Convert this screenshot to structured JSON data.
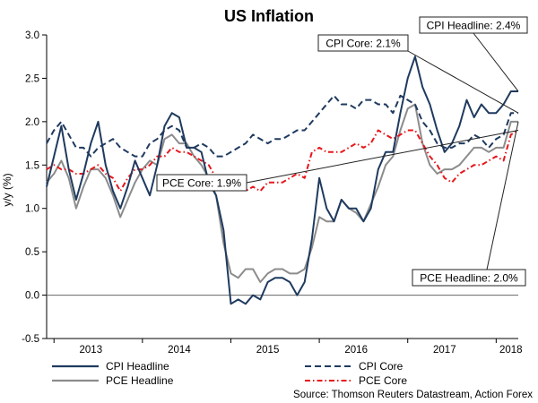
{
  "chart_data": {
    "type": "line",
    "title": "US Inflation",
    "ylabel": "y/y (%)",
    "xlabel": "",
    "ylim": [
      -0.5,
      3.0
    ],
    "yticks": [
      "3.0",
      "2.5",
      "2.0",
      "1.5",
      "1.0",
      "0.5",
      "0.0",
      "-0.5"
    ],
    "ytick_values": [
      3.0,
      2.5,
      2.0,
      1.5,
      1.0,
      0.5,
      0.0,
      -0.5
    ],
    "xlim_index": [
      0,
      64
    ],
    "x_start": "Dec 2012",
    "x_end": "Apr 2018",
    "xtick_labels": [
      "2013",
      "2014",
      "2015",
      "2016",
      "2017",
      "2018"
    ],
    "xtick_index": [
      6,
      18,
      30,
      42,
      54,
      63
    ],
    "year_boundary_index": [
      1,
      13,
      25,
      37,
      49,
      61
    ],
    "grid": false,
    "zero_line": true,
    "series": [
      {
        "name": "CPI Headline",
        "color": "#1f3a5f",
        "style": "solid",
        "values": [
          1.25,
          1.6,
          1.95,
          1.45,
          1.1,
          1.4,
          1.75,
          2.0,
          1.5,
          1.2,
          1.0,
          1.25,
          1.55,
          1.35,
          1.15,
          1.5,
          1.95,
          2.1,
          2.05,
          1.7,
          1.7,
          1.65,
          1.3,
          1.15,
          0.75,
          -0.1,
          -0.05,
          -0.1,
          0.0,
          -0.05,
          0.15,
          0.2,
          0.2,
          0.15,
          0.0,
          0.15,
          0.65,
          1.35,
          1.0,
          0.85,
          1.1,
          1.0,
          1.0,
          0.85,
          1.0,
          1.45,
          1.65,
          1.65,
          2.1,
          2.5,
          2.75,
          2.4,
          2.2,
          1.9,
          1.65,
          1.75,
          1.95,
          2.25,
          2.05,
          2.2,
          2.1,
          2.1,
          2.2,
          2.35,
          2.35
        ]
      },
      {
        "name": "CPI Core",
        "color": "#1f3a5f",
        "style": "dashed",
        "values": [
          1.75,
          1.9,
          2.0,
          1.85,
          1.7,
          1.7,
          1.6,
          1.7,
          1.75,
          1.8,
          1.7,
          1.65,
          1.6,
          1.6,
          1.75,
          1.8,
          1.9,
          1.95,
          1.9,
          1.7,
          1.7,
          1.75,
          1.7,
          1.6,
          1.6,
          1.65,
          1.7,
          1.75,
          1.85,
          1.8,
          1.75,
          1.8,
          1.8,
          1.85,
          1.9,
          1.9,
          2.0,
          2.1,
          2.2,
          2.3,
          2.2,
          2.2,
          2.15,
          2.25,
          2.25,
          2.2,
          2.2,
          2.1,
          2.3,
          2.25,
          2.2,
          2.0,
          1.9,
          1.75,
          1.7,
          1.7,
          1.75,
          1.75,
          1.85,
          1.8,
          1.7,
          1.8,
          1.85,
          2.1,
          2.1
        ]
      },
      {
        "name": "PCE Headline",
        "color": "#8c8c8c",
        "style": "solid",
        "values": [
          1.3,
          1.4,
          1.55,
          1.35,
          1.0,
          1.25,
          1.45,
          1.45,
          1.35,
          1.15,
          0.9,
          1.1,
          1.3,
          1.45,
          1.55,
          1.5,
          1.8,
          1.85,
          1.75,
          1.75,
          1.6,
          1.5,
          1.35,
          1.15,
          0.6,
          0.25,
          0.2,
          0.3,
          0.3,
          0.15,
          0.25,
          0.3,
          0.3,
          0.25,
          0.25,
          0.3,
          0.55,
          0.9,
          0.85,
          0.85,
          1.1,
          1.0,
          0.95,
          0.85,
          1.05,
          1.25,
          1.5,
          1.6,
          1.9,
          2.15,
          2.2,
          1.75,
          1.5,
          1.4,
          1.45,
          1.45,
          1.5,
          1.6,
          1.7,
          1.7,
          1.65,
          1.7,
          1.7,
          2.0,
          2.0
        ]
      },
      {
        "name": "PCE Core",
        "color": "#e8161b",
        "style": "dashdot",
        "values": [
          1.45,
          1.5,
          1.45,
          1.45,
          1.4,
          1.4,
          1.45,
          1.5,
          1.4,
          1.35,
          1.2,
          1.35,
          1.45,
          1.45,
          1.5,
          1.6,
          1.6,
          1.7,
          1.65,
          1.65,
          1.6,
          1.55,
          1.5,
          1.35,
          1.3,
          1.3,
          1.35,
          1.2,
          1.25,
          1.2,
          1.3,
          1.3,
          1.3,
          1.35,
          1.4,
          1.35,
          1.65,
          1.7,
          1.65,
          1.65,
          1.65,
          1.7,
          1.75,
          1.7,
          1.75,
          1.9,
          1.85,
          1.8,
          1.85,
          1.9,
          1.9,
          1.75,
          1.6,
          1.5,
          1.35,
          1.3,
          1.4,
          1.45,
          1.5,
          1.5,
          1.55,
          1.6,
          1.55,
          1.85,
          1.9
        ]
      }
    ],
    "annotations": [
      {
        "text": "CPI Headline: 2.4%",
        "series": "CPI Headline",
        "point_index": 64
      },
      {
        "text": "CPI Core: 2.1%",
        "series": "CPI Core",
        "point_index": 64
      },
      {
        "text": "PCE Core: 1.9%",
        "series": "PCE Core",
        "point_index": 64
      },
      {
        "text": "PCE Headline: 2.0%",
        "series": "PCE Headline",
        "point_index": 64
      }
    ],
    "source": "Source: Thomson Reuters Datastream, Action Forex"
  }
}
